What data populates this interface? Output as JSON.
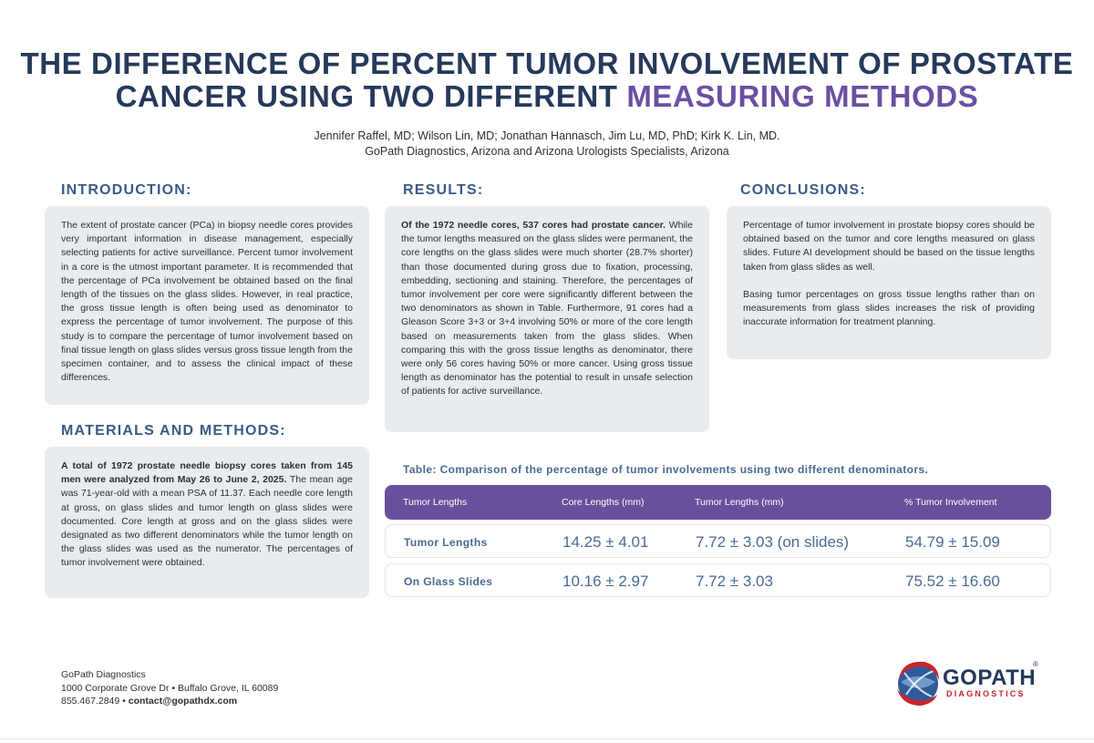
{
  "title": {
    "line1": "THE DIFFERENCE OF PERCENT TUMOR INVOLVEMENT OF PROSTATE",
    "line2_main": "CANCER USING TWO DIFFERENT ",
    "line2_accent": "MEASURING METHODS"
  },
  "authors": {
    "names": "Jennifer Raffel, MD; Wilson Lin, MD; Jonathan Hannasch, Jim Lu, MD, PhD; Kirk K. Lin, MD.",
    "affiliation": "GoPath Diagnostics, Arizona and Arizona Urologists Specialists, Arizona"
  },
  "introduction": {
    "heading": "INTRODUCTION:",
    "text": "The extent of prostate cancer (PCa) in biopsy needle cores provides very important information in disease management, especially selecting patients for active surveillance. Percent tumor involvement in a core is the utmost important parameter. It is recommended that the percentage of PCa involvement be obtained based on the final length of the tissues on the glass slides. However, in real practice, the gross tissue length is often being used as denominator to express the percentage of tumor involvement. The purpose of this study is to compare the percentage of tumor involvement based on final tissue length on glass slides versus gross tissue length from the specimen container, and to assess the clinical impact of these differences."
  },
  "methods": {
    "heading": "MATERIALS AND METHODS:",
    "bold": "A total of 1972 prostate needle biopsy cores taken from 145 men were analyzed from May 26 to June 2, 2025.",
    "text": " The mean age was 71-year-old with a mean PSA of 11.37. Each needle core length at gross, on glass slides and tumor length on glass slides were documented. Core length at gross and on the glass slides were designated as two different denominators while the tumor length on the glass slides was used as the numerator. The percentages of tumor involvement were obtained."
  },
  "results": {
    "heading": "RESULTS:",
    "bold": "Of the 1972 needle cores, 537 cores had prostate cancer.",
    "text": " While the tumor lengths measured on the glass slides were permanent, the core lengths on the glass slides were much shorter (28.7% shorter) than those documented during gross due to fixation, processing, embedding, sectioning and staining. Therefore, the percentages of tumor involvement per core were significantly different between the two denominators as shown in Table. Furthermore, 91 cores had a Gleason Score 3+3 or 3+4 involving 50% or more of the core length based on measurements taken from the glass slides. When comparing this with the gross tissue lengths as denominator, there were only 56 cores having 50% or more cancer. Using gross tissue length as denominator has the potential to result in unsafe selection of patients for active surveillance."
  },
  "conclusions": {
    "heading": "CONCLUSIONS:",
    "p1": "Percentage of tumor involvement in prostate biopsy cores should be obtained based on the tumor and core lengths measured on glass slides. Future AI development should be based on the tissue lengths taken from glass slides as well.",
    "p2": "Basing tumor percentages on gross tissue lengths rather than on measurements from glass slides increases the risk of providing inaccurate information for treatment planning."
  },
  "table": {
    "caption": "Table: Comparison of the percentage of tumor involvements using two different denominators.",
    "headers": [
      "Tumor Lengths",
      "Core Lengths (mm)",
      "Tumor Lengths (mm)",
      "% Tumor Involvement"
    ],
    "rows": [
      [
        "Tumor Lengths",
        "14.25 ± 4.01",
        "7.72 ± 3.03 (on slides)",
        "54.79 ± 15.09"
      ],
      [
        "On Glass Slides",
        "10.16 ± 2.97",
        "7.72 ± 3.03",
        "75.52 ± 16.60"
      ]
    ]
  },
  "footer": {
    "org": "GoPath Diagnostics",
    "address": "1000 Corporate Grove Dr • Buffalo Grove, IL 60089",
    "phone": "855.467.2849 • ",
    "email": "contact@gopathdx.com"
  },
  "logo": {
    "word": "GOPATH",
    "sub": "DIAGNOSTICS",
    "reg": "®"
  },
  "colors": {
    "title": "#26395a",
    "accent": "#6b4fa2",
    "heading": "#3a5a86",
    "card": "#e9ecef",
    "table_header": "#6a4f9c",
    "logo_red": "#c8262b"
  }
}
